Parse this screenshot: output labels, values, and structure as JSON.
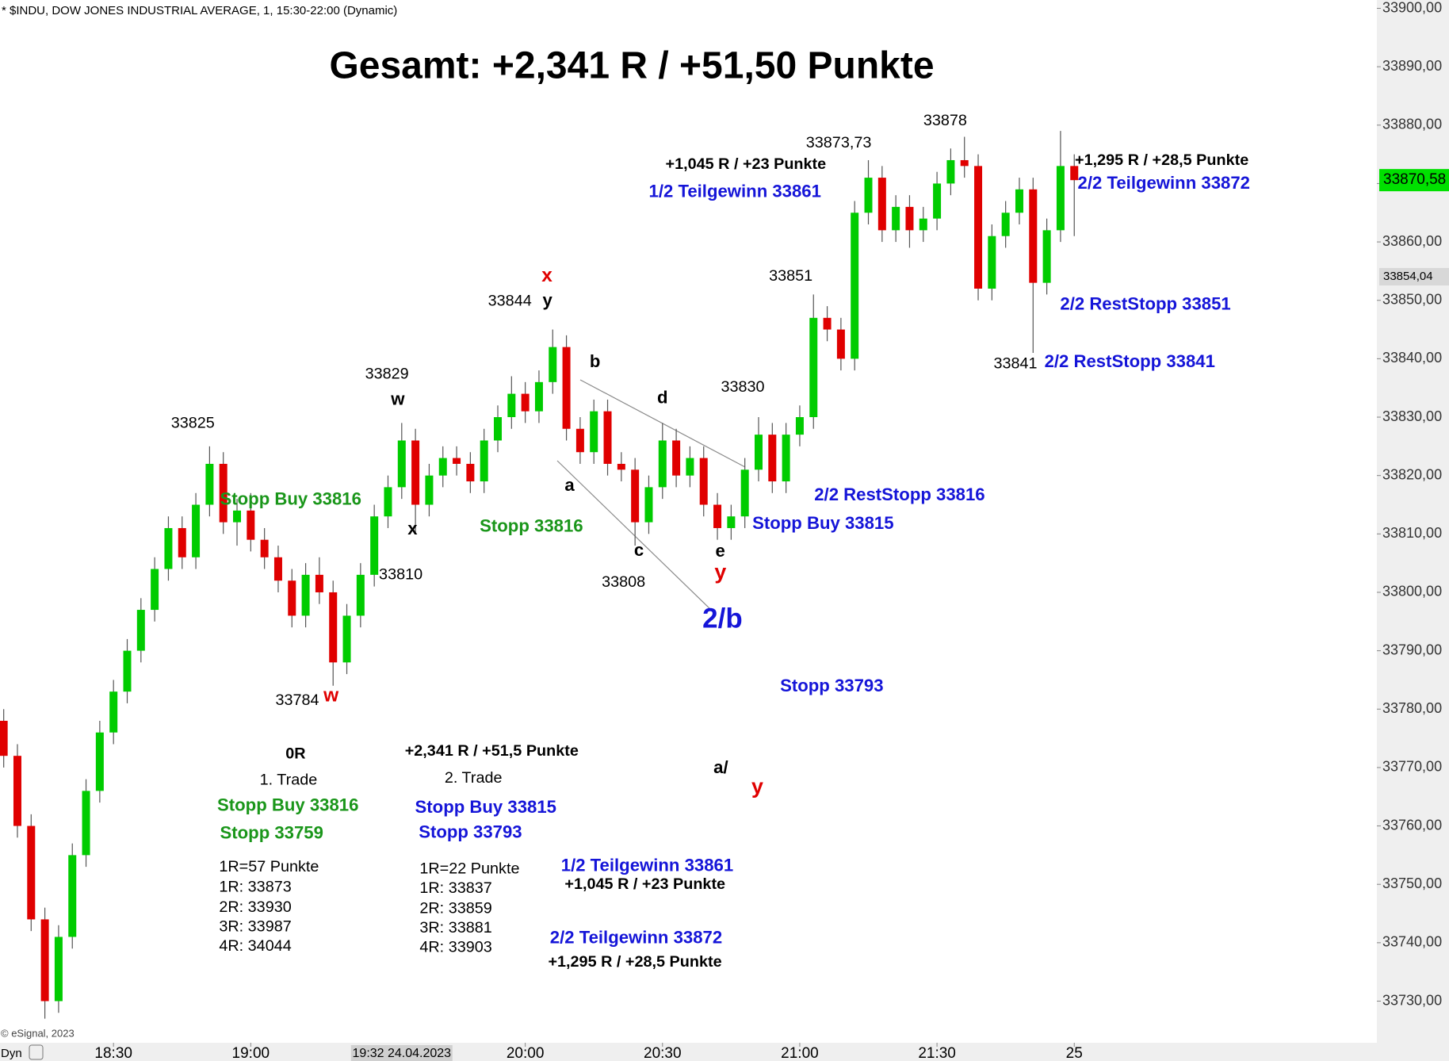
{
  "chart_data": {
    "type": "candlestick",
    "header": "* $INDU, DOW JONES INDUSTRIAL AVERAGE, 1, 15:30-22:00 (Dynamic)",
    "title": "Gesamt: +2,341 R / +51,50 Punkte",
    "copyright": "© eSignal, 2023",
    "mode_label": "Dyn",
    "up_color": "#00cc00",
    "down_color": "#e00000",
    "ylim": [
      33900,
      33730
    ],
    "yticks": [
      {
        "value": 33900,
        "label": "33900,00"
      },
      {
        "value": 33890,
        "label": "33890,00"
      },
      {
        "value": 33880,
        "label": "33880,00"
      },
      {
        "value": 33870,
        "label": "33870,00"
      },
      {
        "value": 33860,
        "label": "33860,00"
      },
      {
        "value": 33850,
        "label": "33850,00"
      },
      {
        "value": 33840,
        "label": "33840,00"
      },
      {
        "value": 33830,
        "label": "33830,00"
      },
      {
        "value": 33820,
        "label": "33820,00"
      },
      {
        "value": 33810,
        "label": "33810,00"
      },
      {
        "value": 33800,
        "label": "33800,00"
      },
      {
        "value": 33790,
        "label": "33790,00"
      },
      {
        "value": 33780,
        "label": "33780,00"
      },
      {
        "value": 33770,
        "label": "33770,00"
      },
      {
        "value": 33760,
        "label": "33760,00"
      },
      {
        "value": 33750,
        "label": "33750,00"
      },
      {
        "value": 33740,
        "label": "33740,00"
      },
      {
        "value": 33730,
        "label": "33730,00"
      }
    ],
    "xticks": [
      {
        "value": 8,
        "label": "18:30"
      },
      {
        "value": 18,
        "label": "19:00"
      },
      {
        "value": 29,
        "label": "19:32 24.04.2023"
      },
      {
        "value": 38,
        "label": "20:00"
      },
      {
        "value": 48,
        "label": "20:30"
      },
      {
        "value": 58,
        "label": "21:00"
      },
      {
        "value": 68,
        "label": "21:30"
      },
      {
        "value": 78,
        "label": "25"
      }
    ],
    "markers": [
      {
        "value": 33870.58,
        "label": "33870,58",
        "color": "#00e000"
      },
      {
        "value": 33854.04,
        "label": "33854,04",
        "color": "#d8d8d8"
      }
    ],
    "candles": [
      [
        33778,
        33780,
        33770,
        33772
      ],
      [
        33772,
        33774,
        33758,
        33760
      ],
      [
        33760,
        33762,
        33742,
        33744
      ],
      [
        33744,
        33746,
        33727,
        33730
      ],
      [
        33730,
        33743,
        33728,
        33741
      ],
      [
        33741,
        33757,
        33739,
        33755
      ],
      [
        33755,
        33768,
        33753,
        33766
      ],
      [
        33766,
        33778,
        33764,
        33776
      ],
      [
        33776,
        33785,
        33774,
        33783
      ],
      [
        33783,
        33792,
        33781,
        33790
      ],
      [
        33790,
        33799,
        33788,
        33797
      ],
      [
        33797,
        33806,
        33795,
        33804
      ],
      [
        33804,
        33813,
        33802,
        33811
      ],
      [
        33811,
        33813,
        33804,
        33806
      ],
      [
        33806,
        33817,
        33804,
        33815
      ],
      [
        33815,
        33825,
        33813,
        33822
      ],
      [
        33822,
        33824,
        33810,
        33812
      ],
      [
        33812,
        33816,
        33808,
        33814
      ],
      [
        33814,
        33817,
        33807,
        33809
      ],
      [
        33809,
        33811,
        33804,
        33806
      ],
      [
        33806,
        33808,
        33800,
        33802
      ],
      [
        33802,
        33804,
        33794,
        33796
      ],
      [
        33796,
        33805,
        33794,
        33803
      ],
      [
        33803,
        33806,
        33798,
        33800
      ],
      [
        33800,
        33802,
        33784,
        33788
      ],
      [
        33788,
        33798,
        33786,
        33796
      ],
      [
        33796,
        33805,
        33794,
        33803
      ],
      [
        33803,
        33815,
        33801,
        33813
      ],
      [
        33813,
        33820,
        33811,
        33818
      ],
      [
        33818,
        33829,
        33816,
        33826
      ],
      [
        33826,
        33828,
        33810,
        33815
      ],
      [
        33815,
        33822,
        33813,
        33820
      ],
      [
        33820,
        33825,
        33818,
        33823
      ],
      [
        33823,
        33825,
        33820,
        33822
      ],
      [
        33822,
        33824,
        33817,
        33819
      ],
      [
        33819,
        33828,
        33817,
        33826
      ],
      [
        33826,
        33832,
        33824,
        33830
      ],
      [
        33830,
        33837,
        33828,
        33834
      ],
      [
        33834,
        33836,
        33829,
        33831
      ],
      [
        33831,
        33838,
        33829,
        33836
      ],
      [
        33836,
        33845,
        33834,
        33842
      ],
      [
        33842,
        33844,
        33826,
        33828
      ],
      [
        33828,
        33830,
        33822,
        33824
      ],
      [
        33824,
        33833,
        33822,
        33831
      ],
      [
        33831,
        33833,
        33820,
        33822
      ],
      [
        33822,
        33824,
        33819,
        33821
      ],
      [
        33821,
        33823,
        33808,
        33812
      ],
      [
        33812,
        33820,
        33810,
        33818
      ],
      [
        33818,
        33829,
        33816,
        33826
      ],
      [
        33826,
        33828,
        33818,
        33820
      ],
      [
        33820,
        33825,
        33818,
        33823
      ],
      [
        33823,
        33825,
        33813,
        33815
      ],
      [
        33815,
        33817,
        33809,
        33811
      ],
      [
        33811,
        33815,
        33809,
        33813
      ],
      [
        33813,
        33823,
        33811,
        33821
      ],
      [
        33821,
        33830,
        33819,
        33827
      ],
      [
        33827,
        33829,
        33817,
        33819
      ],
      [
        33819,
        33829,
        33817,
        33827
      ],
      [
        33827,
        33832,
        33825,
        33830
      ],
      [
        33830,
        33851,
        33828,
        33847
      ],
      [
        33847,
        33849,
        33843,
        33845
      ],
      [
        33845,
        33847,
        33838,
        33840
      ],
      [
        33840,
        33867,
        33838,
        33865
      ],
      [
        33865,
        33874,
        33863,
        33871
      ],
      [
        33871,
        33873,
        33860,
        33862
      ],
      [
        33862,
        33868,
        33860,
        33866
      ],
      [
        33866,
        33868,
        33859,
        33862
      ],
      [
        33862,
        33866,
        33860,
        33864
      ],
      [
        33864,
        33872,
        33862,
        33870
      ],
      [
        33870,
        33876,
        33868,
        33874
      ],
      [
        33874,
        33878,
        33871,
        33873
      ],
      [
        33873,
        33875,
        33850,
        33852
      ],
      [
        33852,
        33863,
        33850,
        33861
      ],
      [
        33861,
        33867,
        33859,
        33865
      ],
      [
        33865,
        33871,
        33863,
        33869
      ],
      [
        33869,
        33871,
        33841,
        33853
      ],
      [
        33853,
        33864,
        33851,
        33862
      ],
      [
        33862,
        33879,
        33860,
        33873
      ],
      [
        33873,
        33875,
        33861,
        33870.58
      ]
    ],
    "annotations": [
      {
        "text": "33825",
        "color": "#000000"
      },
      {
        "text": "Stopp Buy 33816",
        "color": "#1a961a"
      },
      {
        "text": "33784",
        "color": "#000000"
      },
      {
        "text": "w",
        "color": "#e00000"
      },
      {
        "text": "33829",
        "color": "#000000"
      },
      {
        "text": "w",
        "color": "#000000"
      },
      {
        "text": "x",
        "color": "#000000"
      },
      {
        "text": "33810",
        "color": "#000000"
      },
      {
        "text": "Stopp 33816",
        "color": "#1a961a"
      },
      {
        "text": "x",
        "color": "#e00000"
      },
      {
        "text": "33844",
        "color": "#000000"
      },
      {
        "text": "y",
        "color": "#000000"
      },
      {
        "text": "b",
        "color": "#000000"
      },
      {
        "text": "a",
        "color": "#000000"
      },
      {
        "text": "c",
        "color": "#000000"
      },
      {
        "text": "33808",
        "color": "#000000"
      },
      {
        "text": "d",
        "color": "#000000"
      },
      {
        "text": "e",
        "color": "#000000"
      },
      {
        "text": "y",
        "color": "#e00000"
      },
      {
        "text": "2/b",
        "color": "#1515d8"
      },
      {
        "text": "33830",
        "color": "#000000"
      },
      {
        "text": "Stopp Buy 33815",
        "color": "#1515d8"
      },
      {
        "text": "2/2 RestStopp 33816",
        "color": "#1515d8"
      },
      {
        "text": "Stopp 33793",
        "color": "#1515d8"
      },
      {
        "text": "33851",
        "color": "#000000"
      },
      {
        "text": "33873,73",
        "color": "#000000"
      },
      {
        "text": "+1,045 R / +23 Punkte",
        "color": "#000000"
      },
      {
        "text": "1/2 Teilgewinn 33861",
        "color": "#1515d8"
      },
      {
        "text": "33878",
        "color": "#000000"
      },
      {
        "text": "+1,295 R / +28,5 Punkte",
        "color": "#000000"
      },
      {
        "text": "2/2 Teilgewinn 33872",
        "color": "#1515d8"
      },
      {
        "text": "2/2 RestStopp 33851",
        "color": "#1515d8"
      },
      {
        "text": "33841",
        "color": "#000000"
      },
      {
        "text": "2/2 RestStopp 33841",
        "color": "#1515d8"
      },
      {
        "text": "0R",
        "color": "#000000"
      },
      {
        "text": "1. Trade",
        "color": "#000000"
      },
      {
        "text": "Stopp Buy 33816",
        "color": "#1a961a"
      },
      {
        "text": "Stopp 33759",
        "color": "#1a961a"
      },
      {
        "text": "1R=57 Punkte",
        "color": "#000000"
      },
      {
        "text": "1R: 33873",
        "color": "#000000"
      },
      {
        "text": "2R: 33930",
        "color": "#000000"
      },
      {
        "text": "3R: 33987",
        "color": "#000000"
      },
      {
        "text": "4R: 34044",
        "color": "#000000"
      },
      {
        "text": "+2,341 R / +51,5 Punkte",
        "color": "#000000"
      },
      {
        "text": "2. Trade",
        "color": "#000000"
      },
      {
        "text": "Stopp Buy 33815",
        "color": "#1515d8"
      },
      {
        "text": "Stopp 33793",
        "color": "#1515d8"
      },
      {
        "text": "1R=22 Punkte",
        "color": "#000000"
      },
      {
        "text": "1R: 33837",
        "color": "#000000"
      },
      {
        "text": "2R: 33859",
        "color": "#000000"
      },
      {
        "text": "3R: 33881",
        "color": "#000000"
      },
      {
        "text": "4R: 33903",
        "color": "#000000"
      },
      {
        "text": "a/",
        "color": "#000000"
      },
      {
        "text": "y",
        "color": "#e00000"
      },
      {
        "text": "1/2 Teilgewinn 33861",
        "color": "#1515d8"
      },
      {
        "text": "+1,045 R / +23 Punkte",
        "color": "#000000"
      },
      {
        "text": "2/2 Teilgewinn 33872",
        "color": "#1515d8"
      },
      {
        "text": "+1,295 R / +28,5 Punkte",
        "color": "#000000"
      }
    ]
  }
}
